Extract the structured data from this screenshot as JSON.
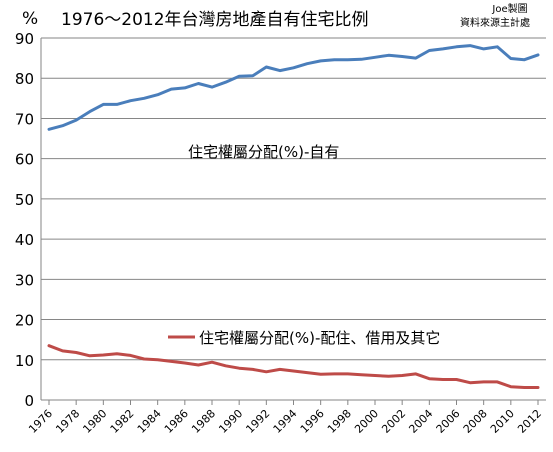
{
  "chart_data": {
    "type": "line",
    "title": "1976～2012年台灣房地產自有住宅比例",
    "source_note": [
      "Joe製圖",
      "資料來源主計處"
    ],
    "ylabel": "%",
    "xlabel": "",
    "ylim": [
      0,
      90
    ],
    "y_ticks": [
      0,
      10,
      20,
      30,
      40,
      50,
      60,
      70,
      80,
      90
    ],
    "grid": true,
    "x": [
      1976,
      1977,
      1978,
      1979,
      1980,
      1981,
      1982,
      1983,
      1984,
      1985,
      1986,
      1987,
      1988,
      1989,
      1990,
      1991,
      1992,
      1993,
      1994,
      1995,
      1996,
      1997,
      1998,
      1999,
      2000,
      2001,
      2002,
      2003,
      2004,
      2005,
      2006,
      2007,
      2008,
      2009,
      2010,
      2011,
      2012
    ],
    "x_ticks": [
      "1976",
      "1978",
      "1980",
      "1982",
      "1984",
      "1986",
      "1988",
      "1990",
      "1992",
      "1994",
      "1996",
      "1998",
      "2000",
      "2002",
      "2004",
      "2006",
      "2008",
      "2010",
      "2012"
    ],
    "series": [
      {
        "name": "住宅權屬分配(%)-自有",
        "color": "#4a7ebb",
        "values": [
          67.3,
          68.2,
          69.6,
          71.7,
          73.5,
          73.5,
          74.4,
          75.0,
          75.9,
          77.3,
          77.6,
          78.7,
          77.8,
          79.0,
          80.5,
          80.6,
          82.8,
          81.9,
          82.6,
          83.6,
          84.3,
          84.6,
          84.6,
          84.7,
          85.2,
          85.7,
          85.4,
          85.0,
          86.9,
          87.3,
          87.8,
          88.1,
          87.3,
          87.8,
          84.9,
          84.6,
          85.8
        ]
      },
      {
        "name": "住宅權屬分配(%)-配住、借用及其它",
        "color": "#be4b48",
        "values": [
          13.5,
          12.2,
          11.8,
          11.0,
          11.2,
          11.5,
          11.1,
          10.2,
          10.0,
          9.6,
          9.2,
          8.7,
          9.4,
          8.5,
          7.9,
          7.6,
          7.0,
          7.6,
          7.2,
          6.8,
          6.4,
          6.5,
          6.5,
          6.3,
          6.1,
          5.9,
          6.1,
          6.5,
          5.3,
          5.1,
          5.1,
          4.3,
          4.5,
          4.5,
          3.3,
          3.1,
          3.1
        ]
      }
    ]
  }
}
